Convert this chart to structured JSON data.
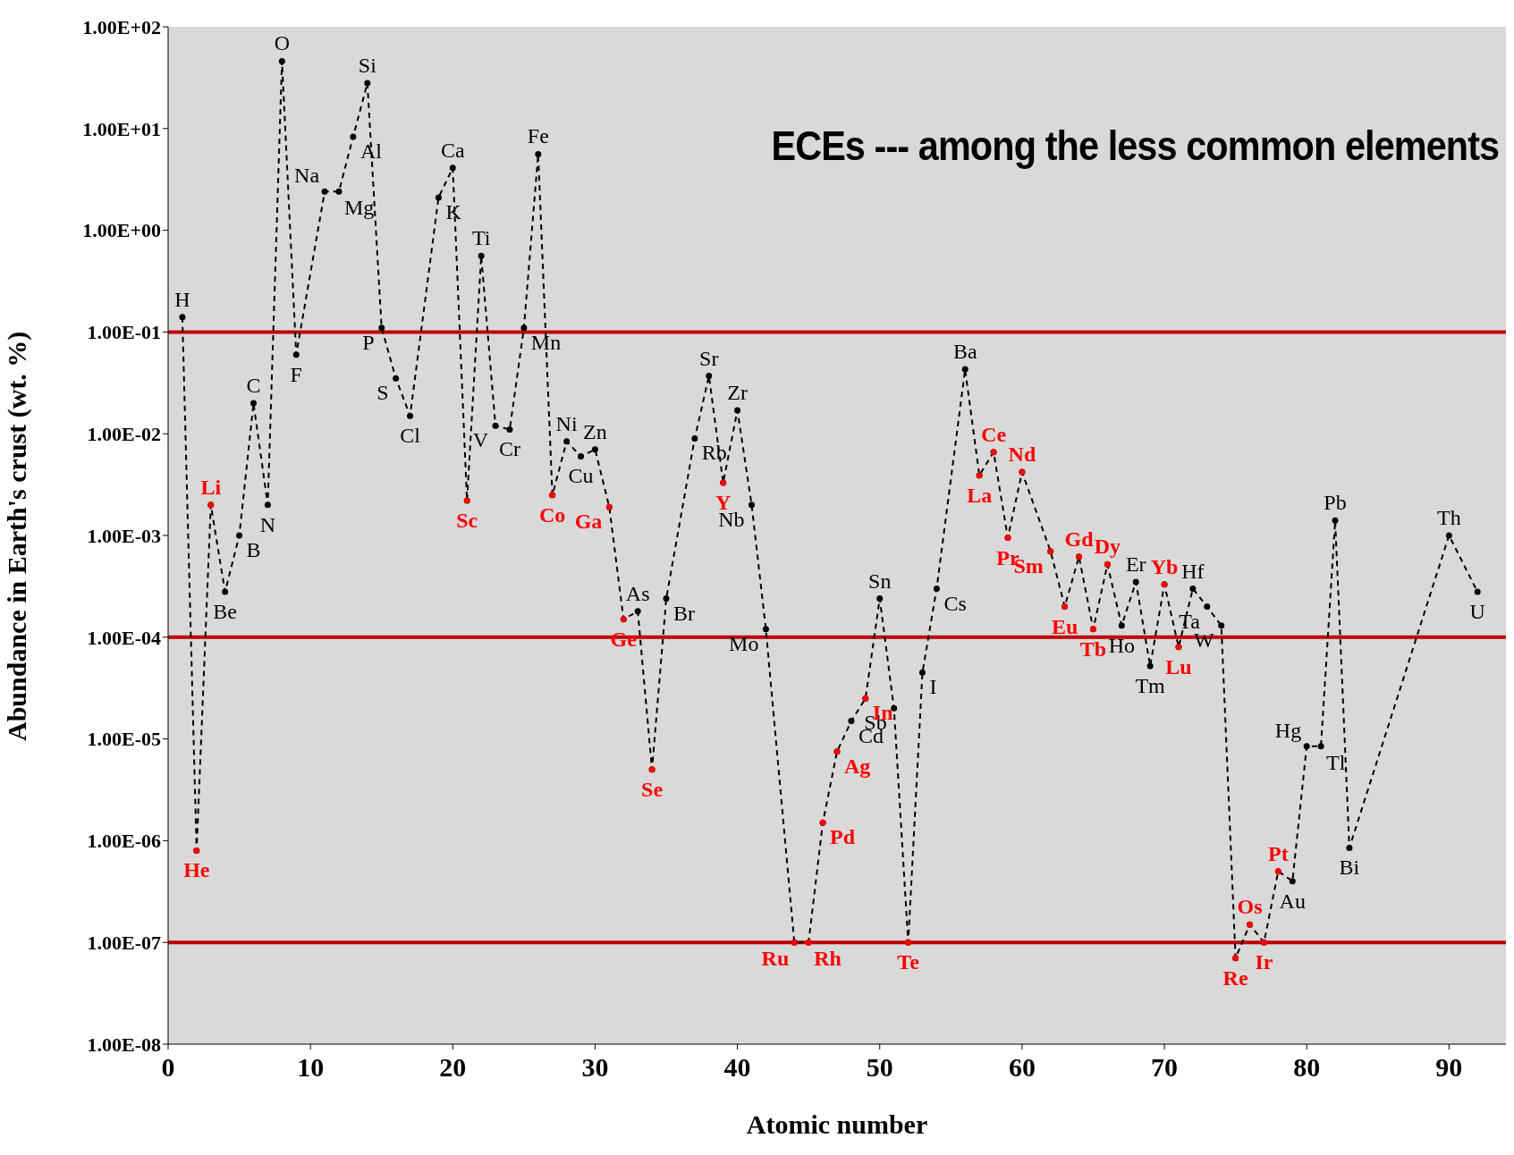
{
  "chart_data": {
    "type": "line",
    "xlabel": "Atomic number",
    "ylabel": "Abundance in Earth's crust (wt. %)",
    "annotations": [
      "ECEs  --- among the less common elements"
    ],
    "xlim": [
      0,
      94
    ],
    "xticks": [
      0,
      10,
      20,
      30,
      40,
      50,
      60,
      70,
      80,
      90
    ],
    "ylim": [
      1e-08,
      100
    ],
    "yticks": [
      {
        "value": 1e-08,
        "label": "1.00E-08"
      },
      {
        "value": 1e-07,
        "label": "1.00E-07"
      },
      {
        "value": 1e-06,
        "label": "1.00E-06"
      },
      {
        "value": 1e-05,
        "label": "1.00E-05"
      },
      {
        "value": 0.0001,
        "label": "1.00E-04"
      },
      {
        "value": 0.001,
        "label": "1.00E-03"
      },
      {
        "value": 0.01,
        "label": "1.00E-02"
      },
      {
        "value": 0.1,
        "label": "1.00E-01"
      },
      {
        "value": 1,
        "label": "1.00E+00"
      },
      {
        "value": 10,
        "label": "1.00E+01"
      },
      {
        "value": 100,
        "label": "1.00E+02"
      }
    ],
    "log": "y",
    "grid": false,
    "legend": false,
    "marker": "circle",
    "ref_lines": [
      {
        "axis": "y",
        "value": 0.1,
        "color": "#c00000"
      },
      {
        "axis": "y",
        "value": 0.0001,
        "color": "#c00000"
      },
      {
        "axis": "y",
        "value": 1e-07,
        "color": "#c00000"
      }
    ],
    "series": [
      {
        "type": "line",
        "color": "#000000",
        "line_style": "dashed",
        "x": [
          1,
          2,
          3,
          4,
          5,
          6,
          7,
          8,
          9,
          11,
          12,
          13,
          14,
          15,
          16,
          17,
          19,
          20,
          21,
          22,
          23,
          24,
          25,
          26,
          27,
          28,
          29,
          30,
          31,
          32,
          33,
          34,
          35,
          37,
          38,
          39,
          40,
          41,
          42,
          44,
          45,
          46,
          47,
          48,
          49,
          50,
          51,
          52,
          53,
          54,
          56,
          57,
          58,
          59,
          60,
          62,
          63,
          64,
          65,
          66,
          67,
          68,
          69,
          70,
          71,
          72,
          73,
          74,
          75,
          76,
          77,
          78,
          79,
          80,
          81,
          82,
          83,
          90,
          92
        ],
        "values": [
          0.14,
          8e-07,
          0.002,
          0.00028,
          0.001,
          0.02,
          0.002,
          46,
          0.06,
          2.4,
          2.4,
          8.3,
          28,
          0.11,
          0.035,
          0.015,
          2.1,
          4.1,
          0.0022,
          0.56,
          0.012,
          0.011,
          0.11,
          5.6,
          0.0025,
          0.0084,
          0.006,
          0.007,
          0.0019,
          0.00015,
          0.00018,
          5e-06,
          0.00024,
          0.009,
          0.037,
          0.0033,
          0.017,
          0.002,
          0.00012,
          1e-07,
          1e-07,
          1.5e-06,
          7.5e-06,
          1.5e-05,
          2.5e-05,
          0.00024,
          2e-05,
          1e-07,
          4.5e-05,
          0.0003,
          0.043,
          0.0039,
          0.0066,
          0.00095,
          0.0042,
          0.0007,
          0.0002,
          0.00062,
          0.00012,
          0.00052,
          0.00013,
          0.00035,
          5.2e-05,
          0.00033,
          8e-05,
          0.0003,
          0.0002,
          0.00013,
          7e-08,
          1.5e-07,
          1e-07,
          5e-07,
          4e-07,
          8.5e-06,
          8.5e-06,
          0.0014,
          8.5e-07,
          0.001,
          0.00028
        ],
        "value_labels": [
          "H",
          null,
          null,
          "Be",
          "B",
          "C",
          "N",
          "O",
          "F",
          "Na",
          "Mg",
          "Al",
          "Si",
          "P",
          "S",
          "Cl",
          "K",
          "Ca",
          null,
          "Ti",
          "V",
          "Cr",
          "Mn",
          "Fe",
          null,
          "Ni",
          "Cu",
          "Zn",
          null,
          null,
          "As",
          null,
          "Br",
          "Rb",
          "Sr",
          null,
          "Zr",
          "Nb",
          "Mo",
          null,
          null,
          null,
          null,
          "Cd",
          null,
          "Sn",
          "Sb",
          null,
          "I",
          "Cs",
          "Ba",
          null,
          null,
          null,
          null,
          null,
          null,
          null,
          null,
          null,
          "Ho",
          "Er",
          "Tm",
          null,
          null,
          "Hf",
          "Ta",
          "W",
          null,
          null,
          null,
          null,
          "Au",
          "Hg",
          "Tl",
          "Pb",
          "Bi",
          "Th",
          "U"
        ]
      },
      {
        "type": "scatter",
        "color": "#ff0000",
        "x": [
          2,
          3,
          21,
          27,
          31,
          32,
          34,
          39,
          44,
          45,
          46,
          47,
          49,
          52,
          57,
          58,
          59,
          60,
          62,
          63,
          64,
          65,
          66,
          70,
          71,
          75,
          76,
          77,
          78
        ],
        "values": [
          8e-07,
          0.002,
          0.0022,
          0.0025,
          0.0019,
          0.00015,
          5e-06,
          0.0033,
          1e-07,
          1e-07,
          1.5e-06,
          7.5e-06,
          2.5e-05,
          1e-07,
          0.0039,
          0.0066,
          0.00095,
          0.0042,
          0.0007,
          0.0002,
          0.00062,
          0.00012,
          0.00052,
          0.00033,
          8e-05,
          7e-08,
          1.5e-07,
          1e-07,
          5e-07
        ],
        "value_labels": [
          "He",
          "Li",
          "Sc",
          "Co",
          "Ga",
          "Ge",
          "Se",
          "Y",
          "Ru",
          "Rh",
          "Pd",
          "Ag",
          "In",
          "Te",
          "La",
          "Ce",
          "Pr",
          "Nd",
          "Sm",
          "Eu",
          "Gd",
          "Tb",
          "Dy",
          "Yb",
          "Lu",
          "Re",
          "Os",
          "Ir",
          "Pt"
        ]
      }
    ]
  }
}
